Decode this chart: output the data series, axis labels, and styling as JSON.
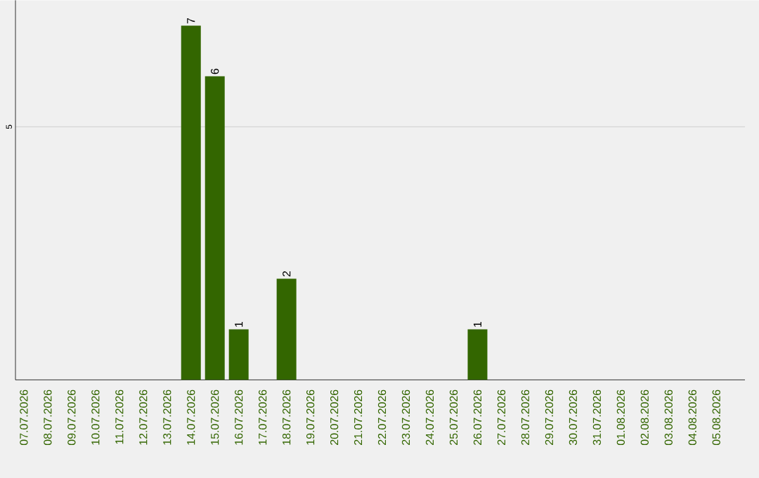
{
  "chart_data": {
    "type": "bar",
    "categories": [
      "07.07.2026",
      "08.07.2026",
      "09.07.2026",
      "10.07.2026",
      "11.07.2026",
      "12.07.2026",
      "13.07.2026",
      "14.07.2026",
      "15.07.2026",
      "16.07.2026",
      "17.07.2026",
      "18.07.2026",
      "19.07.2026",
      "20.07.2026",
      "21.07.2026",
      "22.07.2026",
      "23.07.2026",
      "24.07.2026",
      "25.07.2026",
      "26.07.2026",
      "27.07.2026",
      "28.07.2026",
      "29.07.2026",
      "30.07.2026",
      "31.07.2026",
      "01.08.2026",
      "02.08.2026",
      "03.08.2026",
      "04.08.2026",
      "05.08.2026"
    ],
    "values": [
      0,
      0,
      0,
      0,
      0,
      0,
      0,
      7,
      6,
      1,
      0,
      2,
      0,
      0,
      0,
      0,
      0,
      0,
      0,
      1,
      0,
      0,
      0,
      0,
      0,
      0,
      0,
      0,
      0,
      0
    ],
    "value_labels": [
      null,
      null,
      null,
      null,
      null,
      null,
      null,
      "7",
      "6",
      "1",
      null,
      "2",
      null,
      null,
      null,
      null,
      null,
      null,
      null,
      "1",
      null,
      null,
      null,
      null,
      null,
      null,
      null,
      null,
      null,
      null
    ],
    "color": "#336600",
    "ylim": [
      0,
      7.5
    ],
    "yticks": [
      5
    ],
    "grid": "y"
  }
}
